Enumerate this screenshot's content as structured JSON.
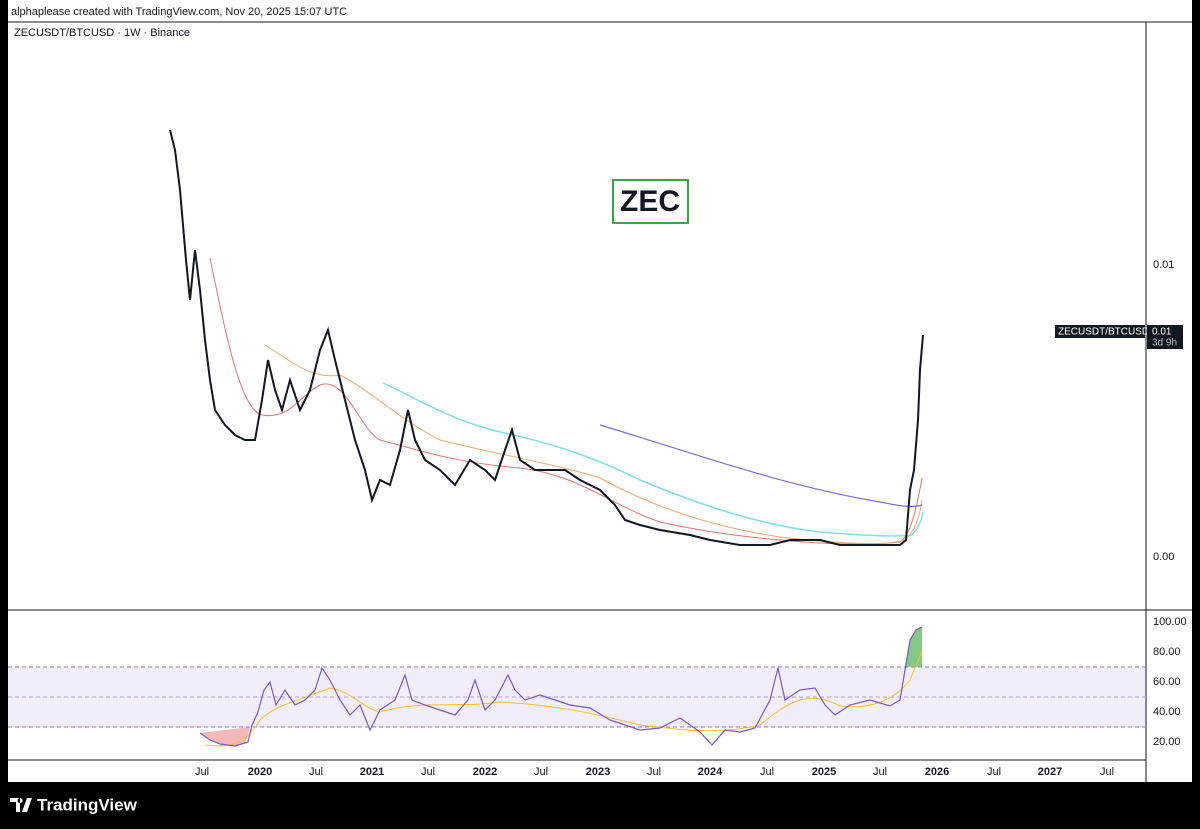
{
  "header": {
    "attribution": "alphaplease created with TradingView.com, Nov 20, 2025 15:07 UTC"
  },
  "symbol_info": "ZECUSDT/BTCUSD · 1W · Binance",
  "annotation": "ZEC",
  "price_axis": {
    "labels": [
      "0.01",
      "0.00"
    ]
  },
  "price_tag": {
    "symbol": "ZECUSDT/BTCUSD",
    "price": "0.01",
    "countdown": "3d 9h"
  },
  "rsi_axis": {
    "labels": [
      "100.00",
      "80.00",
      "60.00",
      "40.00",
      "20.00"
    ]
  },
  "time_axis": {
    "labels": [
      "Jul",
      "2020",
      "Jul",
      "2021",
      "Jul",
      "2022",
      "Jul",
      "2023",
      "Jul",
      "2024",
      "Jul",
      "2025",
      "Jul",
      "2026",
      "Jul",
      "2027",
      "Jul"
    ]
  },
  "footer": {
    "logo": "TradingView"
  }
}
